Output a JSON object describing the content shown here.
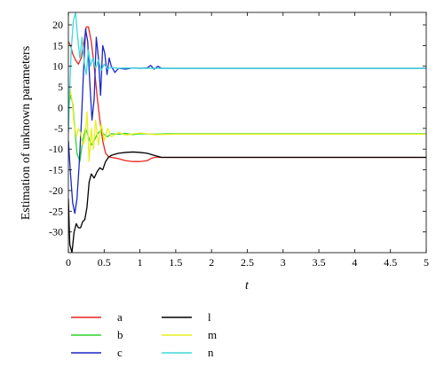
{
  "chart_data": {
    "type": "line",
    "xlabel": "t",
    "ylabel": "Estimation of unknown parameters",
    "xlim": [
      0,
      5
    ],
    "ylim": [
      -35,
      23
    ],
    "xticks": [
      "0",
      "0.5",
      "1",
      "1.5",
      "2",
      "2.5",
      "3",
      "3.5",
      "4",
      "4.5",
      "5"
    ],
    "yticks": [
      "20",
      "15",
      "10",
      "5",
      "0",
      "-5",
      "-10",
      "-15",
      "-20",
      "-25",
      "-30"
    ],
    "grid": false,
    "legend_position": "below plot, two columns",
    "series": [
      {
        "name": "a",
        "color": "#e8261f",
        "x": [
          0,
          0.03,
          0.06,
          0.1,
          0.14,
          0.18,
          0.22,
          0.25,
          0.28,
          0.32,
          0.36,
          0.4,
          0.44,
          0.48,
          0.52,
          0.56,
          0.6,
          0.7,
          0.8,
          0.9,
          1.0,
          1.1,
          1.15,
          1.2,
          1.3,
          1.5,
          2,
          3,
          4,
          5
        ],
        "y": [
          16,
          15,
          13,
          11.5,
          10.5,
          12,
          16,
          19.5,
          19.5,
          16,
          10,
          3,
          -3,
          -8,
          -11,
          -11.8,
          -12,
          -12.3,
          -12.8,
          -13,
          -13,
          -12.8,
          -12.3,
          -12,
          -12,
          -12,
          -12,
          -12,
          -12,
          -12
        ]
      },
      {
        "name": "b",
        "color": "#2fd42a",
        "x": [
          0,
          0.03,
          0.06,
          0.09,
          0.12,
          0.16,
          0.2,
          0.24,
          0.28,
          0.32,
          0.36,
          0.4,
          0.45,
          0.5,
          0.55,
          0.6,
          0.7,
          0.8,
          0.9,
          1.0,
          1.2,
          1.4,
          2,
          3,
          4,
          5
        ],
        "y": [
          0,
          3,
          1,
          -5,
          -11,
          -13,
          -8,
          -5,
          -7,
          -9,
          -8,
          -6.5,
          -5.5,
          -6.5,
          -7,
          -6.3,
          -6.4,
          -6.2,
          -6.5,
          -6.3,
          -6.4,
          -6.3,
          -6.3,
          -6.3,
          -6.3,
          -6.3
        ]
      },
      {
        "name": "c",
        "color": "#1a27c8",
        "x": [
          0,
          0.03,
          0.06,
          0.09,
          0.12,
          0.15,
          0.18,
          0.21,
          0.24,
          0.27,
          0.3,
          0.33,
          0.36,
          0.39,
          0.42,
          0.45,
          0.48,
          0.51,
          0.54,
          0.57,
          0.6,
          0.65,
          0.7,
          0.8,
          0.9,
          1.0,
          1.1,
          1.15,
          1.2,
          1.25,
          1.3,
          1.5,
          2,
          3,
          4,
          5
        ],
        "y": [
          -8,
          -16,
          -23,
          -25.5,
          -22,
          -14,
          -4,
          8,
          19,
          16,
          6,
          -3,
          2,
          17,
          12,
          3,
          15,
          13,
          8,
          12,
          10,
          8.5,
          9.5,
          9.3,
          9.6,
          9.5,
          9.6,
          10.2,
          9.3,
          10,
          9.5,
          9.5,
          9.5,
          9.5,
          9.5,
          9.5
        ]
      },
      {
        "name": "l",
        "color": "#000000",
        "x": [
          0,
          0.02,
          0.05,
          0.08,
          0.11,
          0.14,
          0.17,
          0.2,
          0.23,
          0.26,
          0.29,
          0.32,
          0.36,
          0.4,
          0.44,
          0.48,
          0.52,
          0.56,
          0.6,
          0.7,
          0.8,
          0.9,
          1.0,
          1.1,
          1.2,
          1.3,
          1.5,
          2,
          3,
          4,
          5
        ],
        "y": [
          -22,
          -33,
          -35,
          -30,
          -28,
          -29,
          -29,
          -27.5,
          -27,
          -24,
          -18,
          -16,
          -17,
          -15.5,
          -14.5,
          -15,
          -13,
          -12,
          -11.5,
          -11,
          -10.8,
          -10.7,
          -10.8,
          -11,
          -11.5,
          -12,
          -12,
          -12,
          -12,
          -12,
          -12
        ]
      },
      {
        "name": "m",
        "color": "#e8f01e",
        "x": [
          0,
          0.02,
          0.05,
          0.08,
          0.11,
          0.14,
          0.17,
          0.2,
          0.23,
          0.26,
          0.29,
          0.32,
          0.35,
          0.38,
          0.42,
          0.46,
          0.5,
          0.55,
          0.6,
          0.7,
          0.8,
          1.0,
          1.2,
          1.5,
          2,
          3,
          4,
          5
        ],
        "y": [
          -4,
          5,
          2,
          -4,
          -7,
          -5,
          -6,
          -9,
          -8,
          -1,
          -13,
          -5,
          -10,
          -3,
          -9,
          -4,
          -8,
          -5,
          -7,
          -6,
          -6.6,
          -6.1,
          -6.5,
          -6.4,
          -6.4,
          -6.4,
          -6.4,
          -6.4
        ]
      },
      {
        "name": "n",
        "color": "#3fd8dc",
        "x": [
          0,
          0.02,
          0.04,
          0.07,
          0.1,
          0.13,
          0.16,
          0.19,
          0.22,
          0.25,
          0.28,
          0.31,
          0.34,
          0.38,
          0.42,
          0.46,
          0.5,
          0.55,
          0.6,
          0.7,
          0.8,
          1.0,
          1.2,
          1.5,
          2,
          3,
          4,
          5
        ],
        "y": [
          -6,
          5,
          14,
          21,
          23,
          17,
          12,
          17,
          11,
          8,
          14,
          10,
          12,
          9.5,
          11.5,
          9,
          10.5,
          9.3,
          9.7,
          9.5,
          9.6,
          9.5,
          9.5,
          9.5,
          9.5,
          9.5,
          9.5,
          9.5
        ]
      }
    ]
  }
}
